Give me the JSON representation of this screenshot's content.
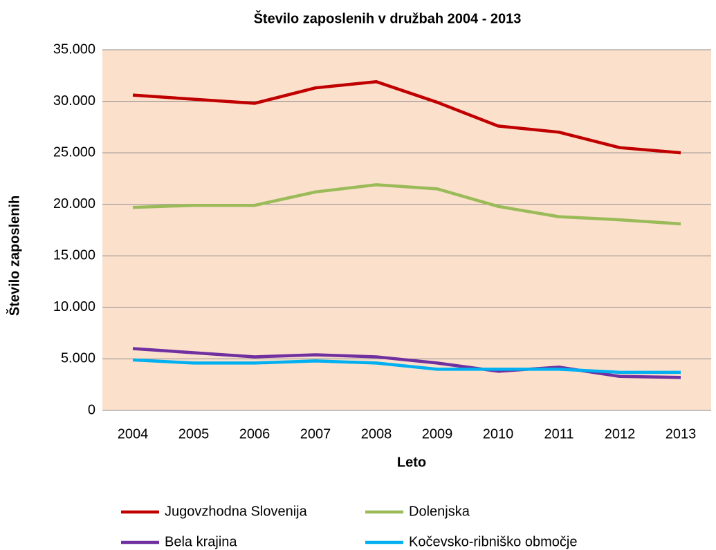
{
  "chart_data": {
    "type": "line",
    "title": "Število zaposlenih v družbah 2004 - 2013",
    "xlabel": "Leto",
    "ylabel": "Število zaposlenih",
    "categories": [
      "2004",
      "2005",
      "2006",
      "2007",
      "2008",
      "2009",
      "2010",
      "2011",
      "2012",
      "2013"
    ],
    "series": [
      {
        "name": "Jugovzhodna Slovenija",
        "color": "#c00000",
        "values": [
          30600,
          30200,
          29800,
          31300,
          31900,
          29900,
          27600,
          27000,
          25500,
          25000
        ]
      },
      {
        "name": "Dolenjska",
        "color": "#9bbb59",
        "values": [
          19700,
          19900,
          19900,
          21200,
          21900,
          21500,
          19800,
          18800,
          18500,
          18100
        ]
      },
      {
        "name": "Bela krajina",
        "color": "#7030a0",
        "values": [
          6000,
          5600,
          5200,
          5400,
          5200,
          4600,
          3800,
          4200,
          3300,
          3200
        ]
      },
      {
        "name": "Kočevsko-ribniško območje",
        "color": "#00b0f0",
        "values": [
          4900,
          4600,
          4600,
          4800,
          4600,
          4000,
          4000,
          4000,
          3700,
          3700
        ]
      }
    ],
    "ylim": [
      0,
      35000
    ],
    "yticks": [
      0,
      {
        "value": 5000,
        "label": "5.000"
      },
      {
        "value": 10000,
        "label": "10.000"
      },
      {
        "value": 15000,
        "label": "15.000"
      },
      {
        "value": 20000,
        "label": "20.000"
      },
      {
        "value": 25000,
        "label": "25.000"
      },
      {
        "value": 30000,
        "label": "30.000"
      },
      {
        "value": 35000,
        "label": "35.000"
      }
    ],
    "grid": true,
    "legend": "bottom",
    "background": "#fbe0cc"
  }
}
